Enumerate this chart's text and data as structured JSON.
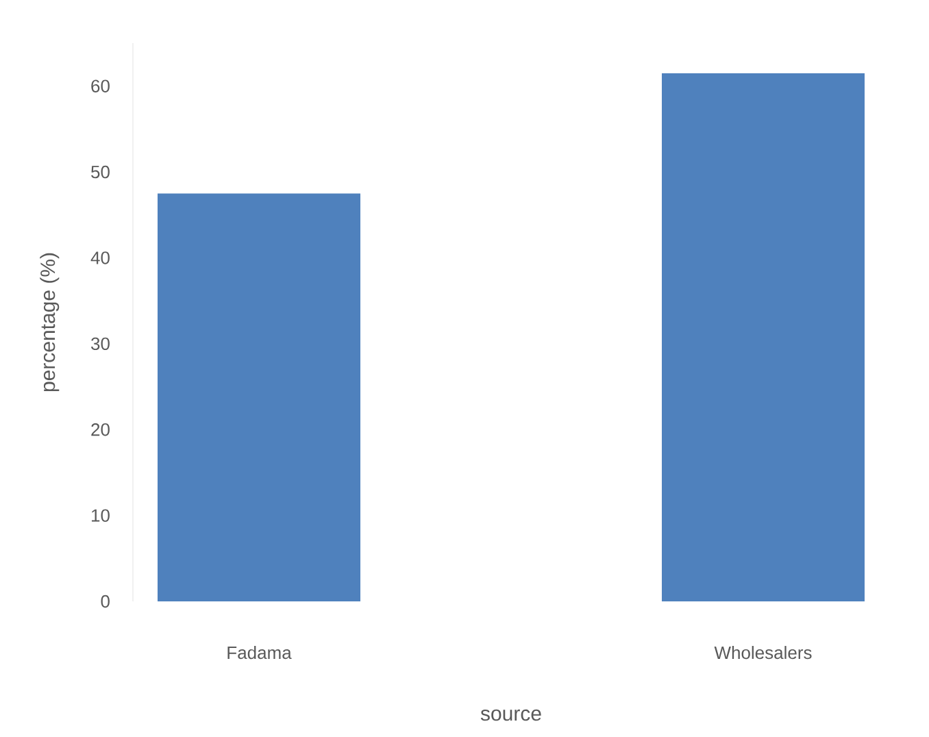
{
  "chart_data": {
    "type": "bar",
    "xlabel": "source",
    "ylabel": "percentage (%)",
    "categories": [
      "Fadama",
      "Wholesalers"
    ],
    "values": [
      47.5,
      61.5
    ],
    "color": "#4f81bd",
    "ylim": [
      0,
      65
    ],
    "yticks": [
      0,
      10,
      20,
      30,
      40,
      50,
      60
    ],
    "grid": false
  }
}
